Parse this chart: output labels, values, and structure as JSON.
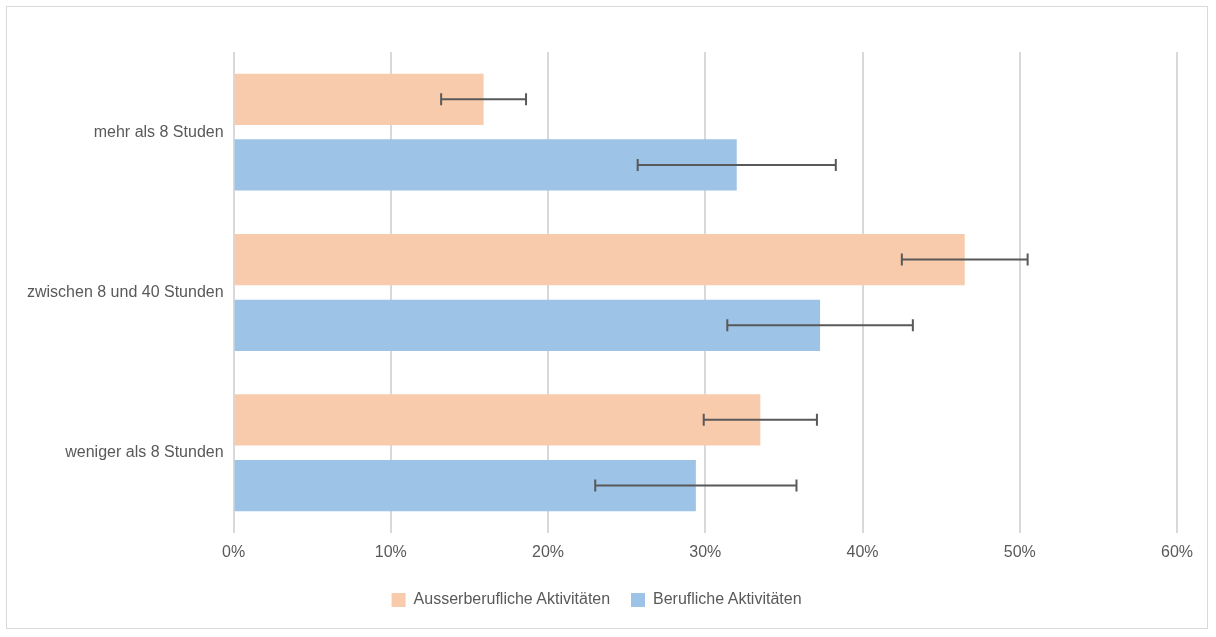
{
  "chart_data": {
    "type": "bar",
    "orientation": "horizontal",
    "categories": [
      "mehr als 8 Studen",
      "zwischen 8 und 40 Stunden",
      "weniger als 8 Stunden"
    ],
    "series": [
      {
        "name": "Ausserberufliche Aktivitäten",
        "color": "#f8cbad",
        "values": [
          15.9,
          46.5,
          33.5
        ],
        "errors": [
          2.7,
          4.0,
          3.6
        ]
      },
      {
        "name": "Berufliche Aktivitäten",
        "color": "#9dc3e6",
        "values": [
          32.0,
          37.3,
          29.4
        ],
        "errors": [
          6.3,
          5.9,
          6.4
        ]
      }
    ],
    "xlim": [
      0,
      60
    ],
    "xticks": [
      {
        "value": 0,
        "label": "0%"
      },
      {
        "value": 10,
        "label": "10%"
      },
      {
        "value": 20,
        "label": "20%"
      },
      {
        "value": 30,
        "label": "30%"
      },
      {
        "value": 40,
        "label": "40%"
      },
      {
        "value": 50,
        "label": "50%"
      },
      {
        "value": 60,
        "label": "60%"
      }
    ],
    "grid": "x",
    "legend": "bottom"
  }
}
